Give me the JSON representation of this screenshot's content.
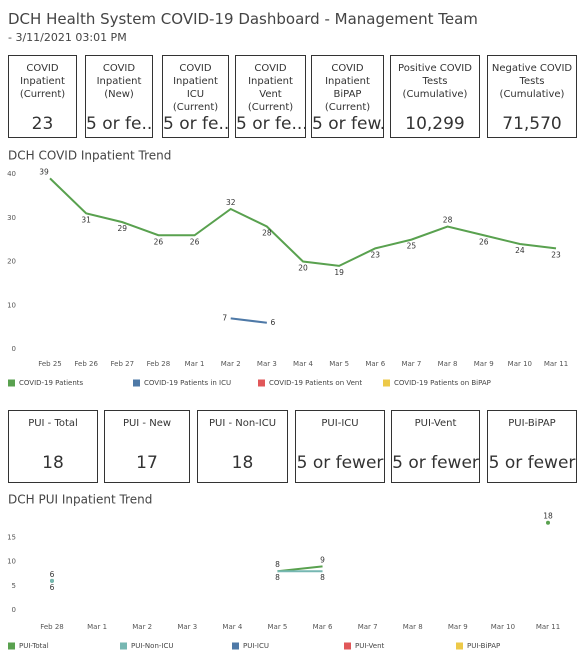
{
  "header": {
    "title": "DCH Health System COVID-19 Dashboard - Management Team",
    "subtitle": "- 3/11/2021 03:01 PM"
  },
  "kpis_top": [
    {
      "label": "COVID Inpatient (Current)",
      "value": "23"
    },
    {
      "label": "COVID Inpatient (New)",
      "value": "5 or fe.."
    },
    {
      "label": "COVID Inpatient ICU (Current)",
      "value": "5 or fe..."
    },
    {
      "label": "COVID Inpatient Vent (Current)",
      "value": "5 or fe..."
    },
    {
      "label": "COVID Inpatient BiPAP (Current)",
      "value": "5 or few..."
    },
    {
      "label": "Positive COVID Tests (Cumulative)",
      "value": "10,299"
    },
    {
      "label": "Negative COVID Tests (Cumulative)",
      "value": "71,570"
    }
  ],
  "kpis_bottom": [
    {
      "label": "PUI - Total",
      "value": "18"
    },
    {
      "label": "PUI - New",
      "value": "17"
    },
    {
      "label": "PUI - Non-ICU",
      "value": "18"
    },
    {
      "label": "PUI-ICU",
      "value": "5 or fewer"
    },
    {
      "label": "PUI-Vent",
      "value": "5 or fewer"
    },
    {
      "label": "PUI-BiPAP",
      "value": "5 or fewer"
    }
  ],
  "chart_data": [
    {
      "type": "line",
      "title": "DCH COVID Inpatient Trend",
      "categories": [
        "Feb 25",
        "Feb 26",
        "Feb 27",
        "Feb 28",
        "Mar 1",
        "Mar 2",
        "Mar 3",
        "Mar 4",
        "Mar 5",
        "Mar 6",
        "Mar 7",
        "Mar 8",
        "Mar 9",
        "Mar 10",
        "Mar 11"
      ],
      "series": [
        {
          "name": "COVID-19 Patients",
          "color": "#59a14f",
          "values": [
            39,
            31,
            29,
            26,
            26,
            32,
            28,
            20,
            19,
            23,
            25,
            28,
            26,
            24,
            23
          ]
        },
        {
          "name": "COVID-19 Patients in ICU",
          "color": "#4e79a7",
          "values": [
            null,
            null,
            null,
            null,
            null,
            7,
            6,
            null,
            null,
            null,
            null,
            null,
            null,
            null,
            null
          ]
        },
        {
          "name": "COVID-19 Patients on Vent",
          "color": "#e15759",
          "values": [
            null,
            null,
            null,
            null,
            null,
            null,
            null,
            null,
            null,
            null,
            null,
            null,
            null,
            null,
            null
          ]
        },
        {
          "name": "COVID-19 Patients on BiPAP",
          "color": "#edc948",
          "values": [
            null,
            null,
            null,
            null,
            null,
            null,
            null,
            null,
            null,
            null,
            null,
            null,
            null,
            null,
            null
          ]
        }
      ],
      "ylim": [
        0,
        40
      ],
      "yticks": [
        0,
        10,
        20,
        30,
        40
      ],
      "legend": "bottom"
    },
    {
      "type": "line",
      "title": "DCH PUI Inpatient Trend",
      "categories": [
        "Feb 28",
        "Mar 1",
        "Mar 2",
        "Mar 3",
        "Mar 4",
        "Mar 5",
        "Mar 6",
        "Mar 7",
        "Mar 8",
        "Mar 9",
        "Mar 10",
        "Mar 11"
      ],
      "series": [
        {
          "name": "PUI-Total",
          "color": "#59a14f",
          "values": [
            6,
            null,
            null,
            null,
            null,
            8,
            9,
            null,
            null,
            null,
            null,
            18
          ]
        },
        {
          "name": "PUI-Non-ICU",
          "color": "#76b7b2",
          "values": [
            6,
            null,
            null,
            null,
            null,
            8,
            8,
            null,
            null,
            null,
            null,
            null
          ]
        },
        {
          "name": "PUI-ICU",
          "color": "#4e79a7",
          "values": [
            null,
            null,
            null,
            null,
            null,
            null,
            null,
            null,
            null,
            null,
            null,
            null
          ]
        },
        {
          "name": "PUI-Vent",
          "color": "#e15759",
          "values": [
            null,
            null,
            null,
            null,
            null,
            null,
            null,
            null,
            null,
            null,
            null,
            null
          ]
        },
        {
          "name": "PUI-BiPAP",
          "color": "#edc948",
          "values": [
            null,
            null,
            null,
            null,
            null,
            null,
            null,
            null,
            null,
            null,
            null,
            null
          ]
        }
      ],
      "ylim": [
        0,
        20
      ],
      "yticks": [
        0,
        5,
        10,
        15
      ],
      "legend": "bottom"
    }
  ]
}
